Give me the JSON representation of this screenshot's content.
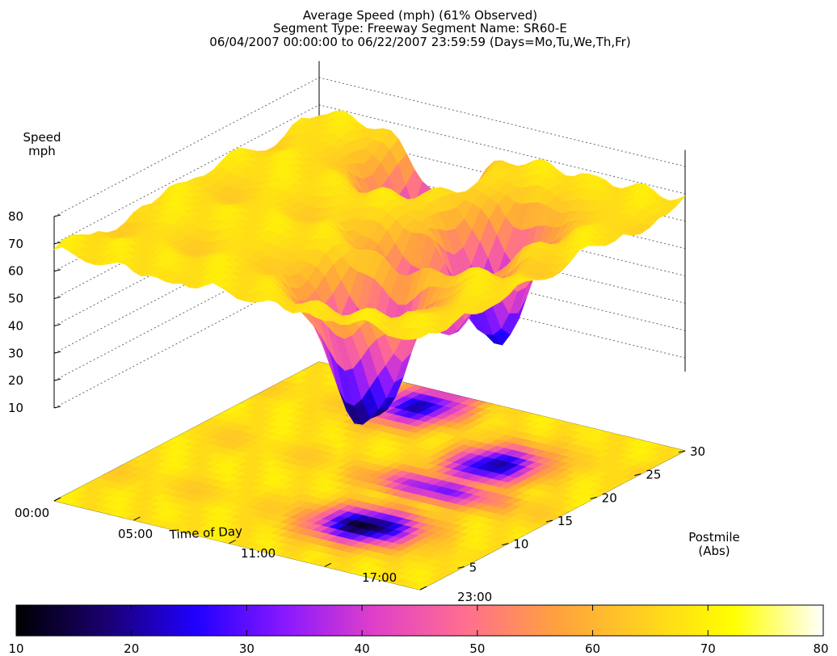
{
  "chart_data": {
    "type": "surface3d",
    "title_lines": [
      "Average Speed (mph) (61% Observed)",
      "Segment Type: Freeway Segment Name: SR60-E",
      "06/04/2007 00:00:00 to 06/22/2007 23:59:59 (Days=Mo,Tu,We,Th,Fr)"
    ],
    "zlabel_lines": [
      "Speed",
      "mph"
    ],
    "xlabel": "Time of Day",
    "ylabel_lines": [
      "Postmile",
      "(Abs)"
    ],
    "z_ticks": [
      "80",
      "70",
      "60",
      "50",
      "40",
      "30",
      "20",
      "10"
    ],
    "x_ticks": [
      "00:00",
      "05:00",
      "11:00",
      "17:00",
      "23:00"
    ],
    "y_ticks": [
      "5",
      "10",
      "15",
      "20",
      "25",
      "30"
    ],
    "zlim": [
      10,
      80
    ],
    "xlim_hours": [
      0,
      23
    ],
    "ylim_postmile": [
      0,
      30
    ],
    "colorbar": {
      "ticks": [
        "10",
        "20",
        "30",
        "40",
        "50",
        "60",
        "70",
        "80"
      ],
      "range": [
        10,
        80
      ],
      "palette": [
        "#000000",
        "#1a0070",
        "#2000ff",
        "#8a18ff",
        "#e040c8",
        "#ff6e90",
        "#ffa040",
        "#ffd020",
        "#ffff00",
        "#ffffff"
      ]
    },
    "congestion_zones": [
      {
        "hours": [
          6,
          10
        ],
        "postmile": [
          24,
          30
        ],
        "min_speed": 22
      },
      {
        "hours": [
          13,
          18
        ],
        "postmile": [
          5,
          10
        ],
        "min_speed": 12
      },
      {
        "hours": [
          14,
          18
        ],
        "postmile": [
          18,
          24
        ],
        "min_speed": 20
      },
      {
        "hours": [
          12,
          19
        ],
        "postmile": [
          14,
          17
        ],
        "min_speed": 32
      }
    ],
    "free_flow_speed": 68
  }
}
